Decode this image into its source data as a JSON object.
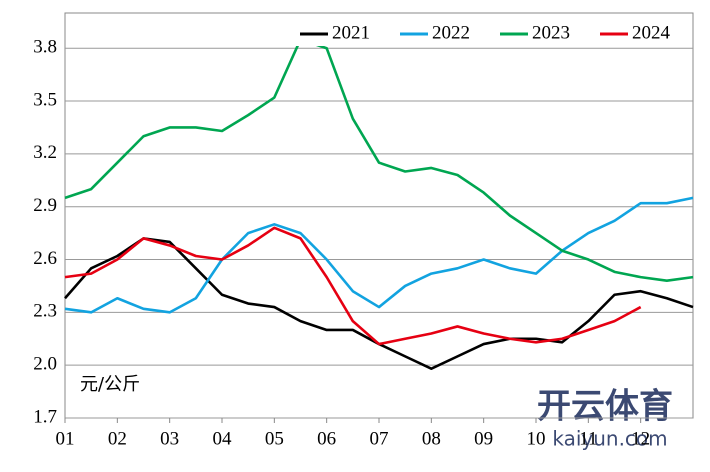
{
  "chart_data": {
    "type": "line",
    "x": [
      1,
      1.5,
      2,
      2.5,
      3,
      3.5,
      4,
      4.5,
      5,
      5.5,
      6,
      6.5,
      7,
      7.5,
      8,
      8.5,
      9,
      9.5,
      10,
      10.5,
      11,
      11.5,
      12,
      12.5,
      13
    ],
    "xlim": [
      1,
      13
    ],
    "xticks": [
      {
        "value": 1,
        "label": "01"
      },
      {
        "value": 2,
        "label": "02"
      },
      {
        "value": 3,
        "label": "03"
      },
      {
        "value": 4,
        "label": "04"
      },
      {
        "value": 5,
        "label": "05"
      },
      {
        "value": 6,
        "label": "06"
      },
      {
        "value": 7,
        "label": "07"
      },
      {
        "value": 8,
        "label": "08"
      },
      {
        "value": 9,
        "label": "09"
      },
      {
        "value": 10,
        "label": "10"
      },
      {
        "value": 11,
        "label": "11"
      },
      {
        "value": 12,
        "label": "12"
      }
    ],
    "ylim": [
      1.7,
      4.0
    ],
    "yticks": [
      1.7,
      {
        "value": 2,
        "label": "2.0"
      },
      2.3,
      2.6,
      2.9,
      3.2,
      3.5,
      3.8
    ],
    "grid": true,
    "legend_position": "top-right",
    "annotation": "元/公斤",
    "watermark": "开云体育",
    "watermark_url": "kaiyun.com",
    "series": [
      {
        "name": "2021",
        "color": "#000000",
        "values": [
          2.38,
          2.55,
          2.62,
          2.72,
          2.7,
          2.55,
          2.4,
          2.35,
          2.33,
          2.25,
          2.2,
          2.2,
          2.12,
          2.05,
          1.98,
          2.05,
          2.12,
          2.15,
          2.15,
          2.13,
          2.25,
          2.4,
          2.42,
          2.38,
          2.33
        ]
      },
      {
        "name": "2022",
        "color": "#12a3e0",
        "values": [
          2.32,
          2.3,
          2.38,
          2.32,
          2.3,
          2.38,
          2.6,
          2.75,
          2.8,
          2.75,
          2.6,
          2.42,
          2.33,
          2.45,
          2.52,
          2.55,
          2.6,
          2.55,
          2.52,
          2.65,
          2.75,
          2.82,
          2.92,
          2.92,
          2.95
        ]
      },
      {
        "name": "2023",
        "color": "#00a651",
        "values": [
          2.95,
          3.0,
          3.15,
          3.3,
          3.35,
          3.35,
          3.33,
          3.42,
          3.52,
          3.85,
          3.8,
          3.4,
          3.15,
          3.1,
          3.12,
          3.08,
          2.98,
          2.85,
          2.75,
          2.65,
          2.6,
          2.53,
          2.5,
          2.48,
          2.5
        ]
      },
      {
        "name": "2024",
        "color": "#e60012",
        "values": [
          2.5,
          2.52,
          2.6,
          2.72,
          2.68,
          2.62,
          2.6,
          2.68,
          2.78,
          2.72,
          2.5,
          2.25,
          2.12,
          2.15,
          2.18,
          2.22,
          2.18,
          2.15,
          2.13,
          2.15,
          2.2,
          2.25,
          2.33,
          null,
          null
        ]
      }
    ]
  }
}
